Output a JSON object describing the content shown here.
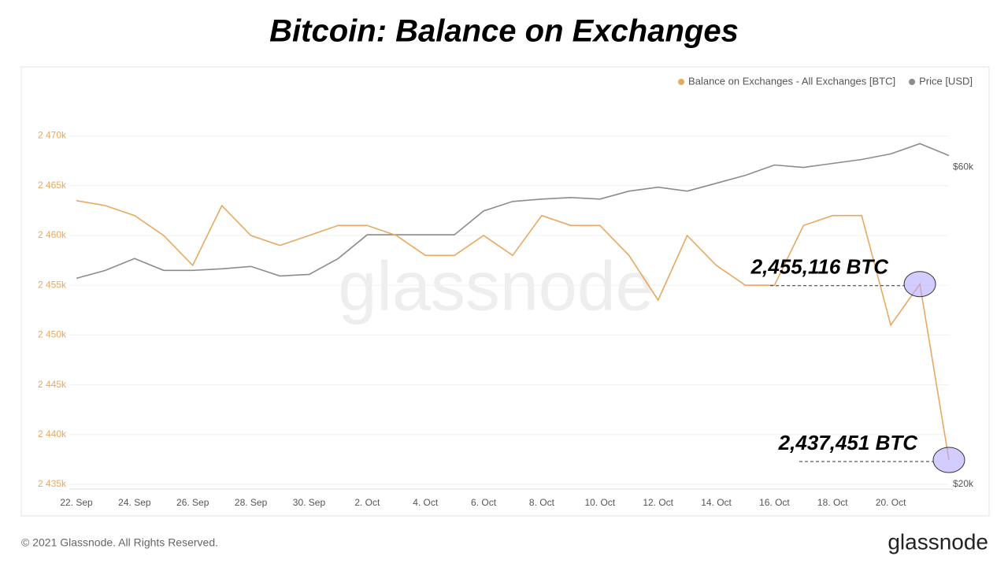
{
  "chart_data": {
    "type": "line",
    "title": "Bitcoin: Balance on Exchanges",
    "footer": "© 2021 Glassnode. All Rights Reserved.",
    "brand": "glassnode",
    "categories": [
      "22. Sep",
      null,
      "24. Sep",
      null,
      "26. Sep",
      null,
      "28. Sep",
      null,
      "30. Sep",
      null,
      "2. Oct",
      null,
      "4. Oct",
      null,
      "6. Oct",
      null,
      "8. Oct",
      null,
      "10. Oct",
      null,
      "12. Oct",
      null,
      "14. Oct",
      null,
      "16. Oct",
      null,
      "18. Oct",
      null,
      "20. Oct",
      null,
      null
    ],
    "series": [
      {
        "name": "Balance on Exchanges - All Exchanges [BTC]",
        "color": "#e8a860",
        "values": [
          2463500,
          2463000,
          2462000,
          2460000,
          2457000,
          2463000,
          2460000,
          2459000,
          2460000,
          2461000,
          2461000,
          2460000,
          2458000,
          2458000,
          2460000,
          2458000,
          2462000,
          2461000,
          2461000,
          2458000,
          2453500,
          2460000,
          2457000,
          2455000,
          2455000,
          2461000,
          2462000,
          2462000,
          2451000,
          2455116,
          2437451
        ],
        "value_labels": [
          null,
          null,
          null,
          null,
          null,
          null,
          null,
          null,
          null,
          null,
          null,
          null,
          null,
          null,
          null,
          null,
          null,
          null,
          null,
          null,
          null,
          null,
          null,
          null,
          null,
          null,
          null,
          null,
          null,
          "2,455,116 BTC",
          "2,437,451 BTC"
        ]
      },
      {
        "name": "Price [USD]",
        "color": "#8c8c8c",
        "axis": "y2",
        "values": [
          46000,
          47000,
          48500,
          47000,
          47000,
          47200,
          47500,
          46300,
          46500,
          48500,
          51500,
          51500,
          51500,
          51500,
          54500,
          55700,
          56000,
          56200,
          56000,
          57000,
          57500,
          57000,
          58000,
          59000,
          60300,
          60000,
          60500,
          61000,
          61700,
          63000,
          61500
        ]
      }
    ],
    "ylim": [
      2435000,
      2474000
    ],
    "yticks": [
      {
        "value": 2435000,
        "label": "2 435k"
      },
      {
        "value": 2440000,
        "label": "2 440k"
      },
      {
        "value": 2445000,
        "label": "2 445k"
      },
      {
        "value": 2450000,
        "label": "2 450k"
      },
      {
        "value": 2455000,
        "label": "2 455k"
      },
      {
        "value": 2460000,
        "label": "2 460k"
      },
      {
        "value": 2465000,
        "label": "2 465k"
      },
      {
        "value": 2470000,
        "label": "2 470k"
      }
    ],
    "y2lim": [
      20000,
      69000
    ],
    "y2ticks": [
      {
        "value": 20000,
        "label": "$20k"
      },
      {
        "value": 60000,
        "label": "$60k"
      }
    ],
    "grid": true,
    "legend": "top-right"
  }
}
